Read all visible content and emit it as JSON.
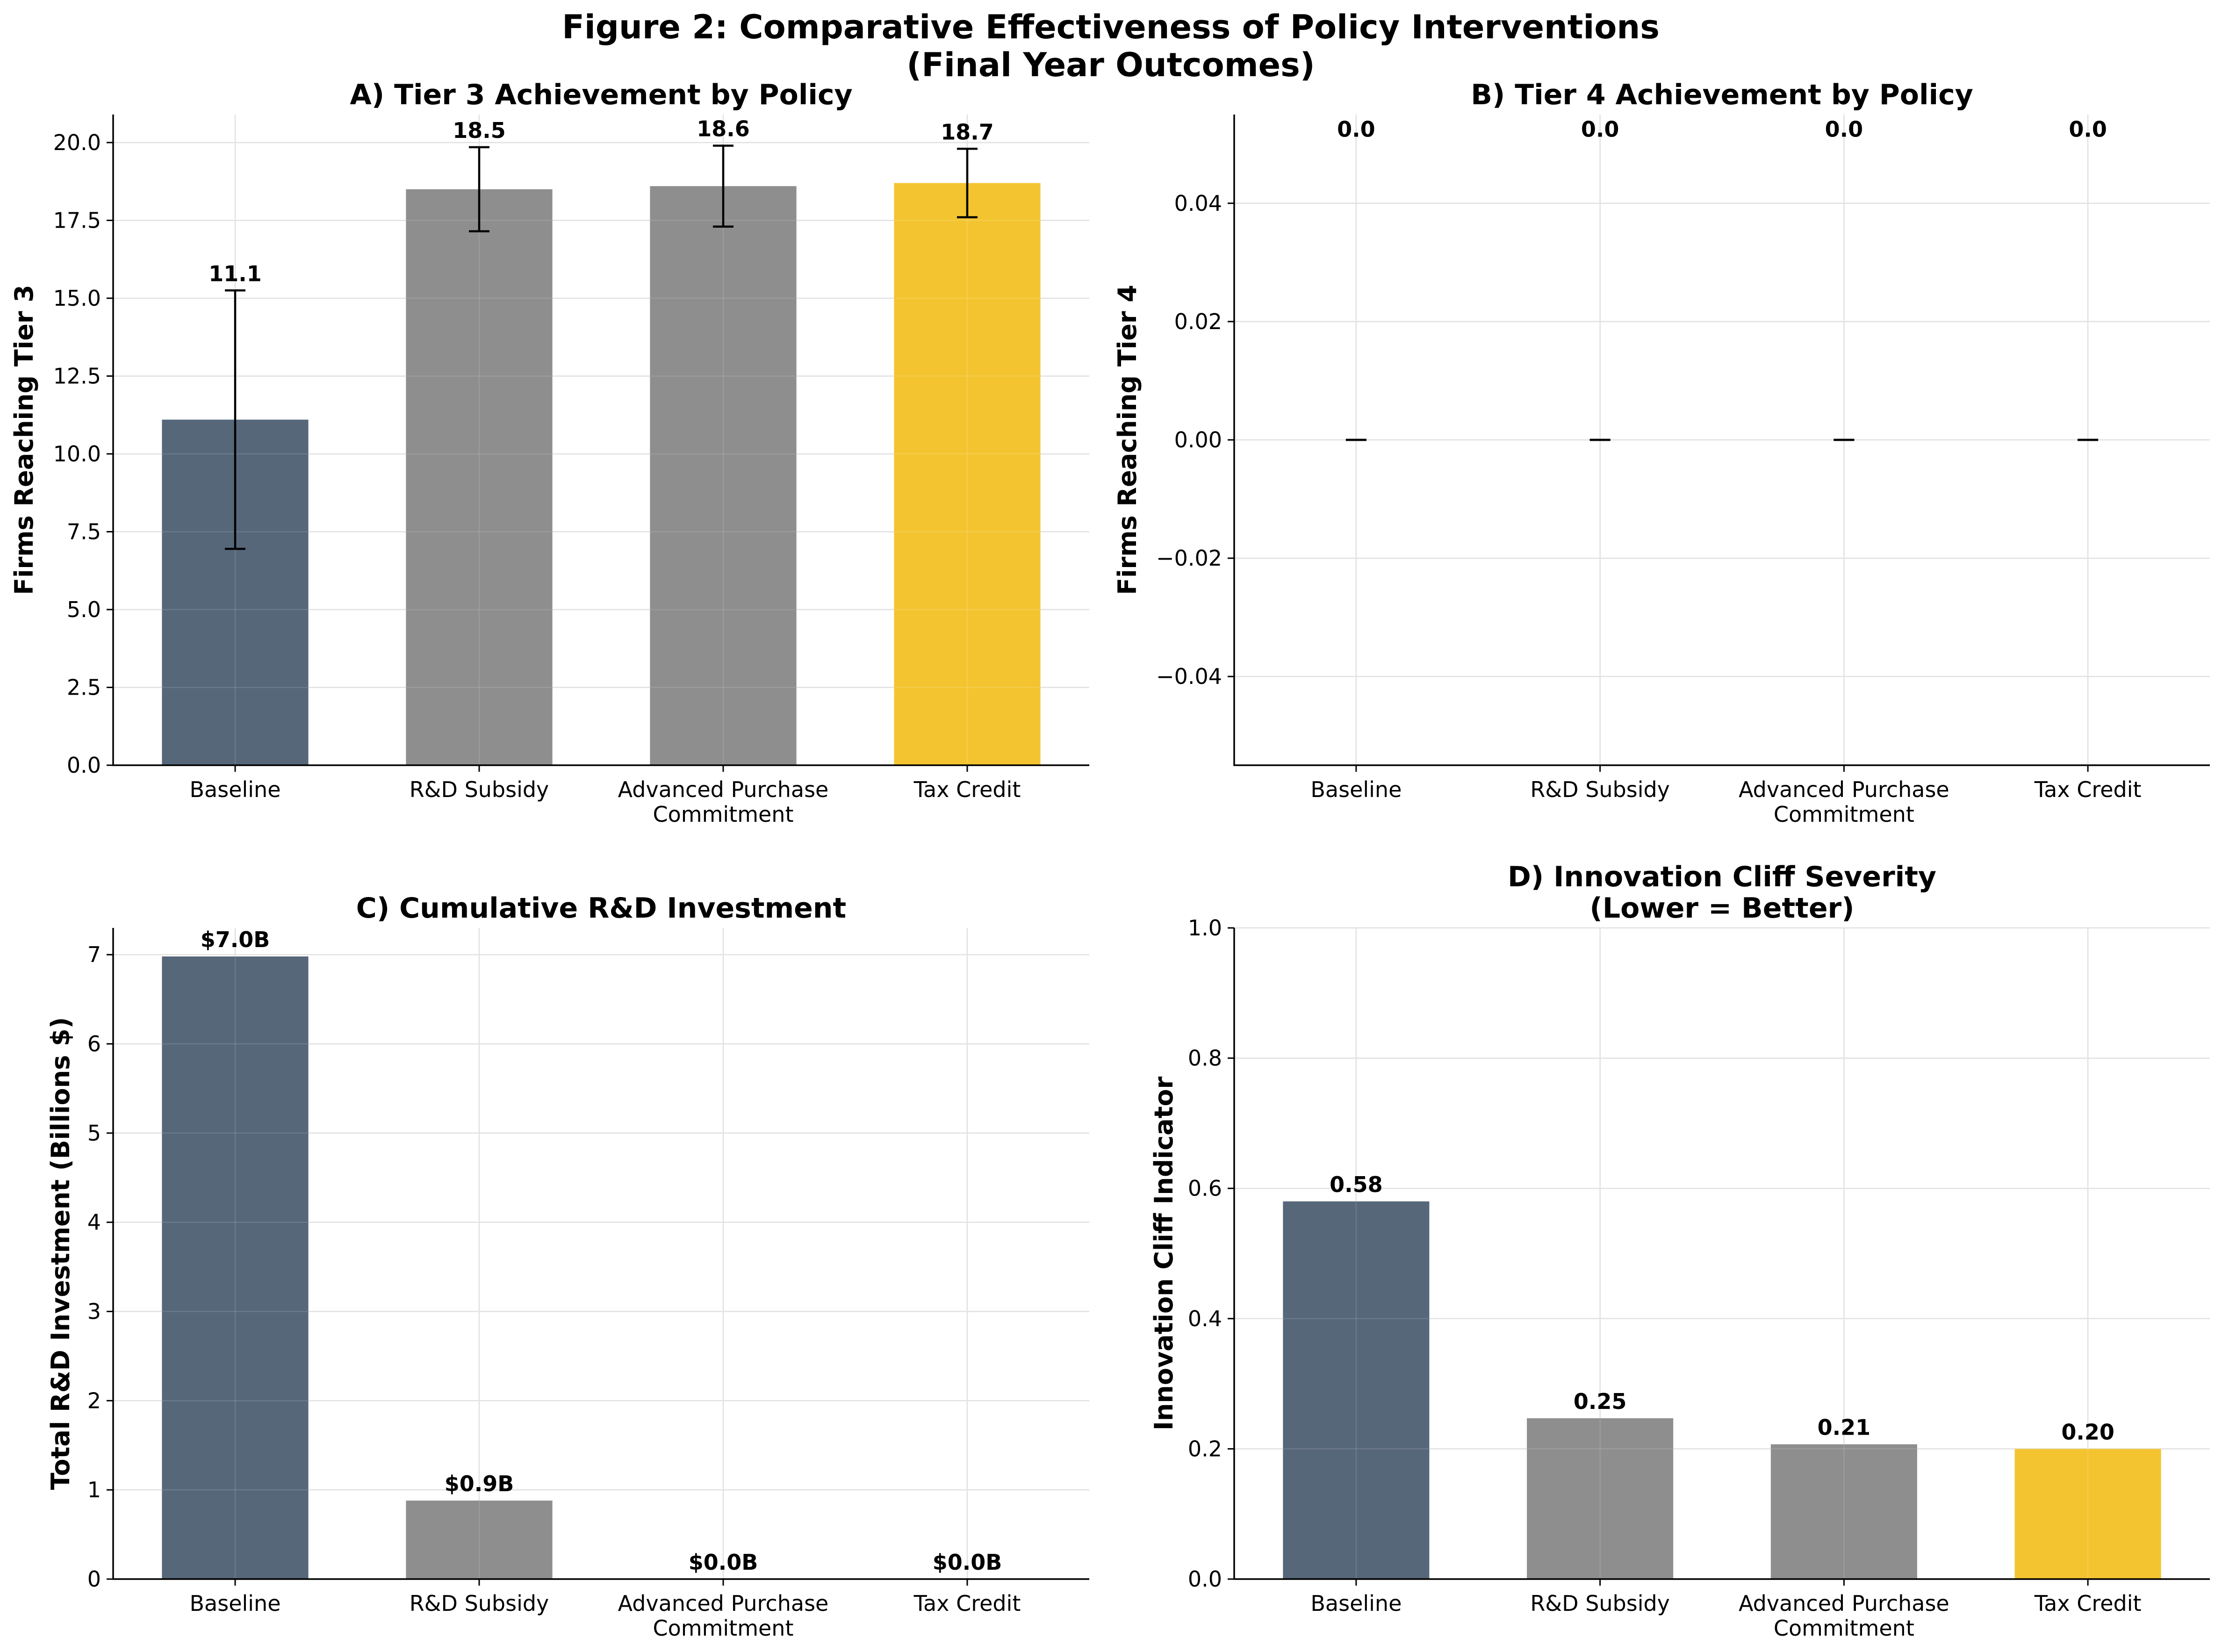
{
  "figure": {
    "title_line1": "Figure 2: Comparative Effectiveness of Policy Interventions",
    "title_line2": "(Final Year Outcomes)"
  },
  "colors": {
    "baseline": "#56677a",
    "policy": "#8e8e8e",
    "best": "#f4c430",
    "axis": "#000000",
    "grid": "#dddddd",
    "text": "#000000"
  },
  "chart_data": [
    {
      "id": "A",
      "type": "bar",
      "title": "A) Tier 3 Achievement by Policy",
      "xlabel": "",
      "ylabel": "Firms Reaching Tier 3",
      "categories": [
        "Baseline",
        "R&D Subsidy",
        "Advanced Purchase\nCommitment",
        "Tax Credit"
      ],
      "values": [
        11.1,
        18.5,
        18.6,
        18.7
      ],
      "errors": [
        4.15,
        1.35,
        1.3,
        1.1
      ],
      "value_labels": [
        "11.1",
        "18.5",
        "18.6",
        "18.7"
      ],
      "bar_colors": [
        "#56677a",
        "#8e8e8e",
        "#8e8e8e",
        "#f4c430"
      ],
      "ylim": [
        0,
        20.9
      ],
      "yticks": [
        0,
        2.5,
        5,
        7.5,
        10,
        12.5,
        15,
        17.5,
        20
      ],
      "ytick_labels": [
        "0.0",
        "2.5",
        "5.0",
        "7.5",
        "10.0",
        "12.5",
        "15.0",
        "17.5",
        "20.0"
      ],
      "grid": true
    },
    {
      "id": "B",
      "type": "bar",
      "title": "B) Tier 4 Achievement by Policy",
      "xlabel": "",
      "ylabel": "Firms Reaching Tier 4",
      "categories": [
        "Baseline",
        "R&D Subsidy",
        "Advanced Purchase\nCommitment",
        "Tax Credit"
      ],
      "values": [
        0,
        0,
        0,
        0
      ],
      "errors": [
        0,
        0,
        0,
        0
      ],
      "value_labels": [
        "0.0",
        "0.0",
        "0.0",
        "0.0"
      ],
      "value_label_at": 0.0525,
      "bar_colors": [
        "#56677a",
        "#8e8e8e",
        "#8e8e8e",
        "#f4c430"
      ],
      "ylim": [
        -0.055,
        0.055
      ],
      "yticks": [
        -0.04,
        -0.02,
        0,
        0.02,
        0.04
      ],
      "ytick_labels": [
        "−0.04",
        "−0.02",
        "0.00",
        "0.02",
        "0.04"
      ],
      "grid": true
    },
    {
      "id": "C",
      "type": "bar",
      "title": "C) Cumulative R&D Investment",
      "xlabel": "",
      "ylabel": "Total R&D Investment (Billions $)",
      "categories": [
        "Baseline",
        "R&D Subsidy",
        "Advanced Purchase\nCommitment",
        "Tax Credit"
      ],
      "values": [
        6.98,
        0.88,
        0,
        0
      ],
      "value_labels": [
        "$7.0B",
        "$0.9B",
        "$0.0B",
        "$0.0B"
      ],
      "bar_colors": [
        "#56677a",
        "#8e8e8e",
        "#8e8e8e",
        "#f4c430"
      ],
      "ylim": [
        0,
        7.3
      ],
      "yticks": [
        0,
        1,
        2,
        3,
        4,
        5,
        6,
        7
      ],
      "ytick_labels": [
        "0",
        "1",
        "2",
        "3",
        "4",
        "5",
        "6",
        "7"
      ],
      "grid": true
    },
    {
      "id": "D",
      "type": "bar",
      "title": "D) Innovation Cliff Severity\n(Lower = Better)",
      "xlabel": "",
      "ylabel": "Innovation Cliff Indicator",
      "categories": [
        "Baseline",
        "R&D Subsidy",
        "Advanced Purchase\nCommitment",
        "Tax Credit"
      ],
      "values": [
        0.58,
        0.247,
        0.207,
        0.2
      ],
      "value_labels": [
        "0.58",
        "0.25",
        "0.21",
        "0.20"
      ],
      "bar_colors": [
        "#56677a",
        "#8e8e8e",
        "#8e8e8e",
        "#f4c430"
      ],
      "ylim": [
        0,
        1
      ],
      "yticks": [
        0,
        0.2,
        0.4,
        0.6,
        0.8,
        1.0
      ],
      "ytick_labels": [
        "0.0",
        "0.2",
        "0.4",
        "0.6",
        "0.8",
        "1.0"
      ],
      "grid": true
    }
  ]
}
